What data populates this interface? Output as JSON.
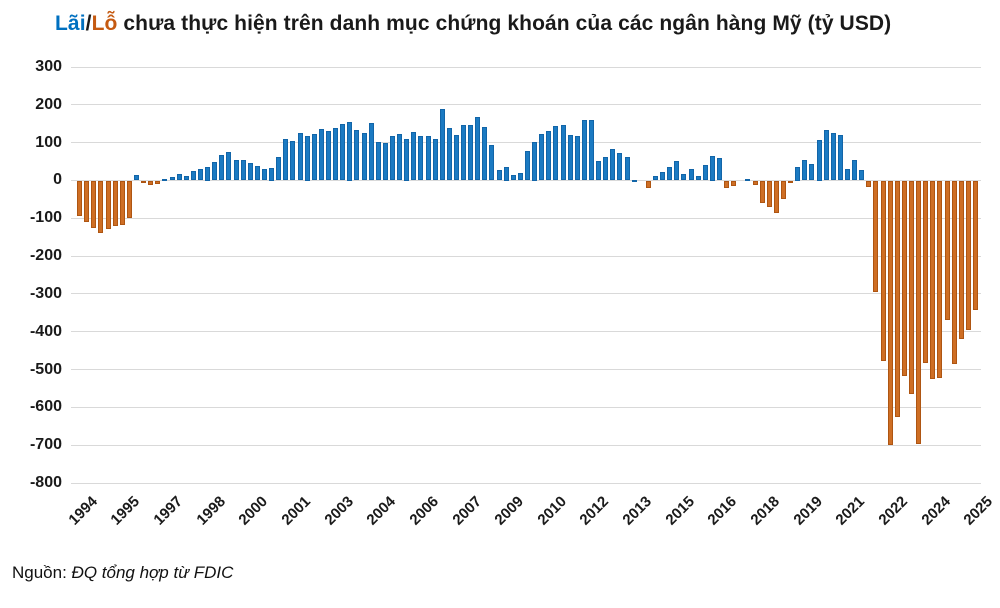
{
  "title": {
    "gain_word": "Lãi",
    "separator": "/",
    "loss_word": "Lỗ",
    "rest": " chưa thực hiện trên danh mục chứng khoán của các ngân hàng Mỹ (tỷ USD)"
  },
  "source": {
    "prefix": "Nguồn: ",
    "text": "ĐQ tổng hợp từ FDIC"
  },
  "colors": {
    "gain_bar": "#1b7ac2",
    "gain_bar_border": "#1265a8",
    "loss_bar": "#ce6e24",
    "loss_bar_border": "#ae5512",
    "title_gain": "#0070c0",
    "title_loss": "#c55a11",
    "grid": "#d9d9d9",
    "text": "#1a1a1a"
  },
  "chart_data": {
    "type": "bar",
    "title": "Lãi/Lỗ chưa thực hiện trên danh mục chứng khoán của các ngân hàng Mỹ (tỷ USD)",
    "xlabel": "",
    "ylabel": "tỷ USD",
    "ylim": [
      -800,
      300
    ],
    "grid": "horizontal",
    "legend": "none",
    "y_ticks": [
      300,
      200,
      100,
      0,
      -100,
      -200,
      -300,
      -400,
      -500,
      -600,
      -700,
      -800
    ],
    "x_tick_interval": 6,
    "x_tick_labels": [
      "1994",
      "1995",
      "1997",
      "1998",
      "2000",
      "2001",
      "2003",
      "2004",
      "2006",
      "2007",
      "2009",
      "2010",
      "2012",
      "2013",
      "2015",
      "2016",
      "2018",
      "2019",
      "2021",
      "2022",
      "2024",
      "2025"
    ],
    "x": [
      "1994Q1",
      "1994Q2",
      "1994Q3",
      "1994Q4",
      "1995Q1",
      "1995Q2",
      "1995Q3",
      "1995Q4",
      "1996Q1",
      "1996Q2",
      "1996Q3",
      "1996Q4",
      "1997Q1",
      "1997Q2",
      "1997Q3",
      "1997Q4",
      "1998Q1",
      "1998Q2",
      "1998Q3",
      "1998Q4",
      "1999Q1",
      "1999Q2",
      "1999Q3",
      "1999Q4",
      "2000Q1",
      "2000Q2",
      "2000Q3",
      "2000Q4",
      "2001Q1",
      "2001Q2",
      "2001Q3",
      "2001Q4",
      "2002Q1",
      "2002Q2",
      "2002Q3",
      "2002Q4",
      "2003Q1",
      "2003Q2",
      "2003Q3",
      "2003Q4",
      "2004Q1",
      "2004Q2",
      "2004Q3",
      "2004Q4",
      "2005Q1",
      "2005Q2",
      "2005Q3",
      "2005Q4",
      "2006Q1",
      "2006Q2",
      "2006Q3",
      "2006Q4",
      "2007Q1",
      "2007Q2",
      "2007Q3",
      "2007Q4",
      "2008Q1",
      "2008Q2",
      "2008Q3",
      "2008Q4",
      "2009Q1",
      "2009Q2",
      "2009Q3",
      "2009Q4",
      "2010Q1",
      "2010Q2",
      "2010Q3",
      "2010Q4",
      "2011Q1",
      "2011Q2",
      "2011Q3",
      "2011Q4",
      "2012Q1",
      "2012Q2",
      "2012Q3",
      "2012Q4",
      "2013Q1",
      "2013Q2",
      "2013Q3",
      "2013Q4",
      "2014Q1",
      "2014Q2",
      "2014Q3",
      "2014Q4",
      "2015Q1",
      "2015Q2",
      "2015Q3",
      "2015Q4",
      "2016Q1",
      "2016Q2",
      "2016Q3",
      "2016Q4",
      "2017Q1",
      "2017Q2",
      "2017Q3",
      "2017Q4",
      "2018Q1",
      "2018Q2",
      "2018Q3",
      "2018Q4",
      "2019Q1",
      "2019Q2",
      "2019Q3",
      "2019Q4",
      "2020Q1",
      "2020Q2",
      "2020Q3",
      "2020Q4",
      "2021Q1",
      "2021Q2",
      "2021Q3",
      "2021Q4",
      "2022Q1",
      "2022Q2",
      "2022Q3",
      "2022Q4",
      "2023Q1",
      "2023Q2",
      "2023Q3",
      "2023Q4",
      "2024Q1",
      "2024Q2",
      "2024Q3",
      "2024Q4",
      "2025Q1",
      "2025Q2",
      "2025Q3"
    ],
    "values": [
      -94,
      -110,
      -126,
      -139,
      -129,
      -121,
      -117,
      -100,
      15,
      -2,
      -13,
      -10,
      3,
      8,
      16,
      11,
      26,
      31,
      37,
      50,
      68,
      75,
      53,
      53,
      45,
      38,
      31,
      33,
      61,
      109,
      105,
      126,
      119,
      123,
      136,
      132,
      139,
      150,
      156,
      134,
      126,
      153,
      101,
      99,
      118,
      123,
      111,
      129,
      117,
      117,
      110,
      190,
      138,
      121,
      147,
      147,
      167,
      141,
      95,
      28,
      37,
      14,
      21,
      77,
      103,
      123,
      132,
      145,
      146,
      121,
      118,
      159,
      161,
      52,
      61,
      82,
      72,
      63,
      2,
      0,
      -20,
      12,
      22,
      36,
      51,
      18,
      31,
      11,
      41,
      66,
      59,
      -21,
      -15,
      0,
      5,
      -11,
      -59,
      -69,
      -87,
      -48,
      -6,
      37,
      54,
      44,
      107,
      133,
      125,
      121,
      31,
      53,
      28,
      -18,
      -296,
      -476,
      -698,
      -625,
      -516,
      -564,
      -696,
      -483,
      -525,
      -521,
      -369,
      -486,
      -420,
      -394,
      -341
    ]
  }
}
